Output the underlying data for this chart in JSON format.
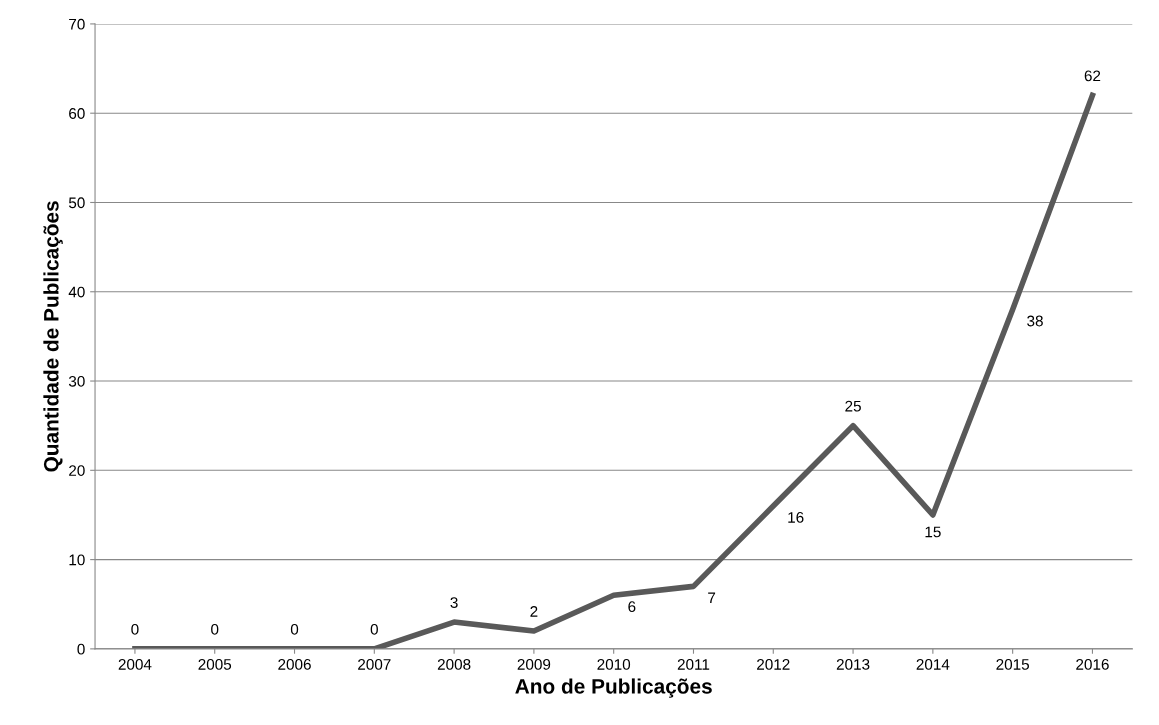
{
  "chart_data": {
    "type": "line",
    "xlabel": "Ano de Publicações",
    "ylabel": "Quantidade de Publicações",
    "categories": [
      "2004",
      "2005",
      "2006",
      "2007",
      "2008",
      "2009",
      "2010",
      "2011",
      "2012",
      "2013",
      "2014",
      "2015",
      "2016"
    ],
    "series": [
      {
        "color": "#595959",
        "values": [
          0,
          0,
          0,
          0,
          3,
          2,
          6,
          7,
          16,
          25,
          15,
          38,
          62
        ]
      }
    ],
    "ylim": [
      0,
      70
    ],
    "yticks": [
      0,
      10,
      20,
      30,
      40,
      50,
      60,
      70
    ],
    "grid": "y",
    "data_labels": true,
    "marker": "none",
    "line_style": "solid"
  }
}
